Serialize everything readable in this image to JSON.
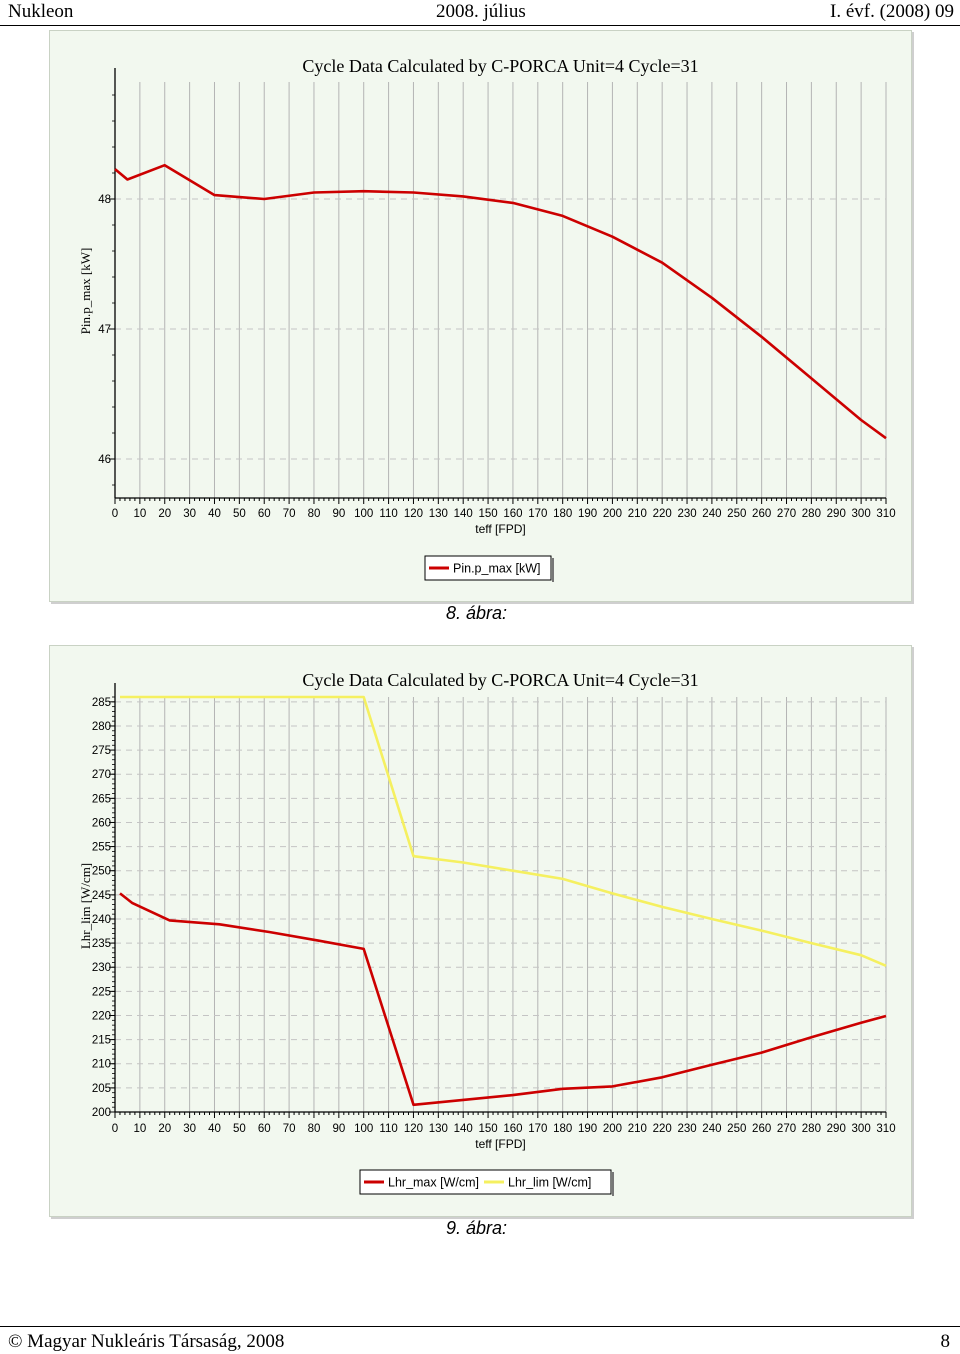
{
  "header": {
    "left": "Nukleon",
    "center": "2008. július",
    "right": "I. évf. (2008) 09"
  },
  "captions": [
    "8. ábra:",
    "9. ábra:"
  ],
  "footer": {
    "left": "© Magyar Nukleáris Társaság, 2008",
    "right": "8"
  },
  "colors": {
    "red": "#cc0000",
    "yellow": "#f5f060",
    "panel": "#f2f8ef",
    "grid": "#b8b8b8"
  },
  "chart_data": [
    {
      "type": "line",
      "title": "Cycle Data Calculated by C-PORCA Unit=4 Cycle=31",
      "xlabel": "teff [FPD]",
      "ylabel": "Pin.p_max [kW]",
      "xlim": [
        0,
        310
      ],
      "ylim": [
        45.7,
        48.9
      ],
      "xticks": [
        0,
        10,
        20,
        30,
        40,
        50,
        60,
        70,
        80,
        90,
        100,
        110,
        120,
        130,
        140,
        150,
        160,
        170,
        180,
        190,
        200,
        210,
        220,
        230,
        240,
        250,
        260,
        270,
        280,
        290,
        300,
        310
      ],
      "yticks": [
        46,
        47,
        48
      ],
      "legend": "bottom-center",
      "series": [
        {
          "name": "Pin.p_max [kW]",
          "color": "#cc0000",
          "x": [
            0,
            5,
            20,
            40,
            60,
            80,
            100,
            120,
            140,
            160,
            180,
            200,
            220,
            240,
            260,
            280,
            300,
            310
          ],
          "y": [
            48.23,
            48.15,
            48.26,
            48.03,
            48.0,
            48.05,
            48.06,
            48.05,
            48.02,
            47.97,
            47.87,
            47.71,
            47.51,
            47.24,
            46.94,
            46.62,
            46.3,
            46.16
          ]
        }
      ]
    },
    {
      "type": "line",
      "title": "Cycle Data Calculated by C-PORCA Unit=4 Cycle=31",
      "xlabel": "teff [FPD]",
      "ylabel": "Lhr_lim [W/cm]",
      "xlim": [
        0,
        310
      ],
      "ylim": [
        200,
        286
      ],
      "xticks": [
        0,
        10,
        20,
        30,
        40,
        50,
        60,
        70,
        80,
        90,
        100,
        110,
        120,
        130,
        140,
        150,
        160,
        170,
        180,
        190,
        200,
        210,
        220,
        230,
        240,
        250,
        260,
        270,
        280,
        290,
        300,
        310
      ],
      "yticks": [
        200,
        205,
        210,
        215,
        220,
        225,
        230,
        235,
        240,
        245,
        250,
        255,
        260,
        265,
        270,
        275,
        280,
        285
      ],
      "legend": "bottom-center",
      "series": [
        {
          "name": "Lhr_max [W/cm]",
          "color": "#cc0000",
          "x": [
            2,
            7,
            22,
            42,
            62,
            82,
            100,
            120,
            140,
            160,
            180,
            200,
            220,
            240,
            260,
            280,
            300,
            310
          ],
          "y": [
            245.3,
            243.3,
            239.7,
            238.9,
            237.3,
            235.5,
            233.8,
            201.5,
            202.5,
            203.5,
            204.8,
            205.3,
            207.2,
            209.8,
            212.3,
            215.5,
            218.5,
            219.9
          ]
        },
        {
          "name": "Lhr_lim [W/cm]",
          "color": "#f5f060",
          "x": [
            2,
            100,
            120,
            140,
            160,
            180,
            200,
            220,
            240,
            260,
            280,
            300,
            310
          ],
          "y": [
            286.0,
            286.0,
            253.0,
            251.7,
            250.0,
            248.3,
            245.3,
            242.5,
            240.0,
            237.6,
            235.0,
            232.5,
            230.3
          ]
        }
      ]
    }
  ]
}
